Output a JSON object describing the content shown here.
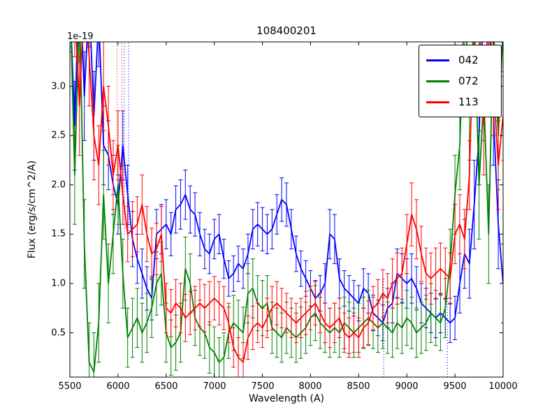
{
  "chart_data": {
    "type": "line",
    "title": "108400201",
    "xlabel": "Wavelength (A)",
    "ylabel": "Flux (erg/s/cm^2/A)",
    "offset_label": "1e-19",
    "xlim": [
      5500,
      10000
    ],
    "ylim": [
      0.05,
      3.45
    ],
    "grid": false,
    "legend_position": "upper right",
    "xticks": [
      5500,
      6000,
      6500,
      7000,
      7500,
      8000,
      8500,
      9000,
      9500,
      10000
    ],
    "yticks": [
      0.5,
      1.0,
      1.5,
      2.0,
      2.5,
      3.0
    ],
    "xtick_labels": [
      "5500",
      "6000",
      "6500",
      "7000",
      "7500",
      "8000",
      "8500",
      "9000",
      "9500",
      "10000"
    ],
    "ytick_labels": [
      "0.5",
      "1.0",
      "1.5",
      "2.0",
      "2.5",
      "3.0"
    ],
    "x": {
      "start": 5500,
      "step": 50,
      "count": 91
    },
    "series": [
      {
        "name": "042",
        "color": "#0000ff",
        "values": [
          3.9,
          2.6,
          4.2,
          2.9,
          3.9,
          2.7,
          3.7,
          2.4,
          2.3,
          2.0,
          1.8,
          2.4,
          1.9,
          1.45,
          1.25,
          1.1,
          0.95,
          0.85,
          1.5,
          1.55,
          1.6,
          1.5,
          1.75,
          1.8,
          1.9,
          1.75,
          1.7,
          1.5,
          1.35,
          1.3,
          1.45,
          1.5,
          1.25,
          1.05,
          1.1,
          1.2,
          1.15,
          1.3,
          1.55,
          1.6,
          1.55,
          1.5,
          1.55,
          1.7,
          1.85,
          1.8,
          1.55,
          1.3,
          1.15,
          1.05,
          0.95,
          0.85,
          0.9,
          1.0,
          1.5,
          1.45,
          1.05,
          0.95,
          0.9,
          0.85,
          0.8,
          0.95,
          0.9,
          0.7,
          0.65,
          0.6,
          0.75,
          0.8,
          1.1,
          1.05,
          1.0,
          1.05,
          0.95,
          0.8,
          0.75,
          0.7,
          0.65,
          0.7,
          0.65,
          0.6,
          0.65,
          1.0,
          1.3,
          1.2,
          1.8,
          2.5,
          4.0,
          3.8,
          2.7,
          1.6,
          1.0
        ],
        "errors": [
          0.55,
          0.45,
          0.5,
          0.45,
          0.5,
          0.45,
          0.5,
          0.4,
          0.35,
          0.3,
          0.3,
          0.35,
          0.3,
          0.28,
          0.25,
          0.25,
          0.22,
          0.22,
          0.25,
          0.25,
          0.25,
          0.22,
          0.24,
          0.25,
          0.25,
          0.24,
          0.22,
          0.22,
          0.2,
          0.2,
          0.2,
          0.2,
          0.2,
          0.18,
          0.18,
          0.18,
          0.2,
          0.2,
          0.2,
          0.22,
          0.22,
          0.2,
          0.2,
          0.2,
          0.22,
          0.22,
          0.2,
          0.18,
          0.18,
          0.18,
          0.18,
          0.18,
          0.18,
          0.2,
          0.25,
          0.25,
          0.2,
          0.18,
          0.18,
          0.18,
          0.18,
          0.2,
          0.2,
          0.18,
          0.18,
          0.18,
          0.2,
          0.2,
          0.25,
          0.25,
          0.25,
          0.25,
          0.22,
          0.2,
          0.2,
          0.2,
          0.2,
          0.2,
          0.2,
          0.2,
          0.22,
          0.3,
          0.35,
          0.35,
          0.45,
          0.5,
          0.55,
          0.55,
          0.5,
          0.45,
          0.4
        ]
      },
      {
        "name": "072",
        "color": "#008000",
        "values": [
          4.0,
          2.1,
          3.8,
          1.4,
          0.2,
          0.1,
          0.6,
          1.9,
          1.0,
          1.5,
          2.0,
          1.1,
          0.45,
          0.55,
          0.65,
          0.5,
          0.6,
          0.75,
          1.0,
          1.1,
          0.5,
          0.35,
          0.4,
          0.5,
          1.15,
          1.0,
          0.65,
          0.55,
          0.5,
          0.35,
          0.3,
          0.2,
          0.25,
          0.5,
          0.6,
          0.55,
          0.5,
          0.9,
          0.95,
          0.8,
          0.75,
          0.8,
          0.55,
          0.5,
          0.45,
          0.55,
          0.5,
          0.45,
          0.5,
          0.55,
          0.65,
          0.7,
          0.6,
          0.55,
          0.5,
          0.55,
          0.5,
          0.6,
          0.55,
          0.5,
          0.55,
          0.6,
          0.65,
          0.6,
          0.55,
          0.6,
          0.55,
          0.5,
          0.6,
          0.55,
          0.65,
          0.6,
          0.5,
          0.55,
          0.6,
          0.7,
          0.65,
          0.6,
          0.75,
          1.2,
          1.9,
          2.4,
          3.9,
          2.8,
          3.7,
          2.0,
          2.9,
          1.5,
          3.6,
          2.5,
          3.6
        ],
        "errors": [
          0.6,
          0.5,
          0.55,
          0.45,
          0.4,
          0.4,
          0.4,
          0.45,
          0.4,
          0.4,
          0.4,
          0.35,
          0.3,
          0.3,
          0.3,
          0.3,
          0.3,
          0.3,
          0.32,
          0.32,
          0.3,
          0.28,
          0.28,
          0.3,
          0.32,
          0.3,
          0.28,
          0.28,
          0.26,
          0.26,
          0.26,
          0.25,
          0.25,
          0.26,
          0.28,
          0.28,
          0.26,
          0.3,
          0.3,
          0.28,
          0.28,
          0.28,
          0.26,
          0.25,
          0.25,
          0.26,
          0.25,
          0.25,
          0.26,
          0.26,
          0.28,
          0.28,
          0.26,
          0.25,
          0.25,
          0.25,
          0.25,
          0.26,
          0.26,
          0.25,
          0.25,
          0.26,
          0.28,
          0.26,
          0.25,
          0.26,
          0.26,
          0.25,
          0.26,
          0.26,
          0.28,
          0.26,
          0.25,
          0.26,
          0.28,
          0.3,
          0.28,
          0.28,
          0.3,
          0.35,
          0.4,
          0.45,
          0.5,
          0.55,
          0.5,
          0.55,
          0.45,
          0.5,
          0.45,
          0.55,
          0.5
        ]
      },
      {
        "name": "113",
        "color": "#ff0000",
        "values": [
          4.1,
          3.8,
          2.8,
          4.0,
          3.3,
          2.5,
          2.2,
          3.0,
          2.6,
          2.1,
          2.4,
          1.9,
          1.5,
          1.55,
          1.6,
          1.8,
          1.5,
          1.3,
          1.35,
          1.5,
          0.75,
          0.7,
          0.8,
          0.75,
          0.65,
          0.7,
          0.75,
          0.8,
          0.75,
          0.8,
          0.85,
          0.8,
          0.75,
          0.6,
          0.35,
          0.25,
          0.2,
          0.45,
          0.55,
          0.6,
          0.55,
          0.65,
          0.75,
          0.8,
          0.75,
          0.7,
          0.65,
          0.6,
          0.65,
          0.7,
          0.75,
          0.8,
          0.7,
          0.6,
          0.55,
          0.6,
          0.65,
          0.5,
          0.45,
          0.5,
          0.45,
          0.55,
          0.6,
          0.75,
          0.8,
          0.9,
          0.85,
          1.0,
          1.05,
          1.1,
          1.4,
          1.7,
          1.55,
          1.3,
          1.1,
          1.05,
          1.1,
          1.15,
          1.1,
          1.05,
          1.5,
          1.6,
          1.45,
          2.1,
          3.9,
          3.7,
          2.6,
          3.8,
          3.0,
          2.2,
          2.7
        ],
        "errors": [
          0.55,
          0.5,
          0.5,
          0.55,
          0.5,
          0.45,
          0.4,
          0.45,
          0.4,
          0.35,
          0.35,
          0.3,
          0.28,
          0.28,
          0.28,
          0.3,
          0.28,
          0.26,
          0.26,
          0.28,
          0.25,
          0.24,
          0.24,
          0.25,
          0.24,
          0.22,
          0.22,
          0.24,
          0.24,
          0.22,
          0.22,
          0.22,
          0.22,
          0.2,
          0.2,
          0.2,
          0.2,
          0.22,
          0.22,
          0.2,
          0.2,
          0.2,
          0.22,
          0.22,
          0.2,
          0.2,
          0.2,
          0.2,
          0.2,
          0.22,
          0.22,
          0.22,
          0.2,
          0.2,
          0.2,
          0.2,
          0.2,
          0.2,
          0.2,
          0.2,
          0.2,
          0.2,
          0.22,
          0.22,
          0.24,
          0.24,
          0.25,
          0.25,
          0.26,
          0.26,
          0.3,
          0.32,
          0.3,
          0.28,
          0.26,
          0.26,
          0.26,
          0.26,
          0.26,
          0.26,
          0.3,
          0.3,
          0.3,
          0.35,
          0.45,
          0.5,
          0.5,
          0.55,
          0.5,
          0.45,
          0.45
        ]
      }
    ],
    "dotted_vlines": [
      {
        "x": 5990,
        "color": "#ff0000",
        "v1": 2.1,
        "v2": 3.45
      },
      {
        "x": 6040,
        "color": "#ff0000",
        "v1": 1.9,
        "v2": 3.45
      },
      {
        "x": 6065,
        "color": "#0000ff",
        "v1": 1.5,
        "v2": 3.45
      },
      {
        "x": 6110,
        "color": "#0000ff",
        "v1": 1.45,
        "v2": 3.45
      },
      {
        "x": 8760,
        "color": "#0000ff",
        "v1": 0.05,
        "v2": 1.05
      },
      {
        "x": 9420,
        "color": "#0000ff",
        "v1": 0.05,
        "v2": 0.85
      }
    ]
  }
}
